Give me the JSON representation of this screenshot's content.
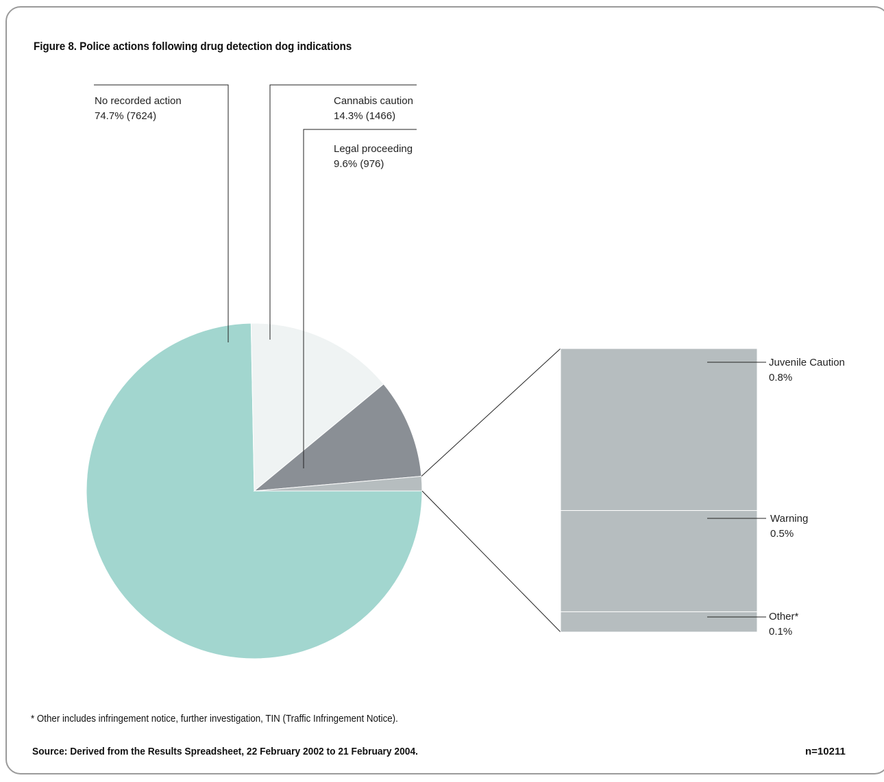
{
  "title": "Figure 8. Police actions following drug detection dog indications",
  "footnote": "* Other includes infringement notice, further investigation, TIN (Traffic Infringement Notice).",
  "source": "Source: Derived from the Results Spreadsheet, 22 February 2002 to 21 February 2004.",
  "n_label": "n=10211",
  "colors": {
    "no_recorded_action": "#a2d6cf",
    "cannabis_caution": "#eff3f3",
    "legal_proceeding": "#8a8f95",
    "small_group": "#b6bdbf"
  },
  "chart_data": [
    {
      "type": "pie",
      "slices": [
        {
          "label": "No recorded action",
          "value_text": "74.7% (7624)",
          "percent": 74.7,
          "count": 7624
        },
        {
          "label": "Cannabis caution",
          "value_text": "14.3% (1466)",
          "percent": 14.3,
          "count": 1466
        },
        {
          "label": "Legal proceeding",
          "value_text": "9.6% (976)",
          "percent": 9.6,
          "count": 976
        },
        {
          "label": "",
          "value_text": "",
          "percent": 1.4
        }
      ]
    },
    {
      "type": "bar",
      "stacked": true,
      "segments": [
        {
          "label": "Juvenile Caution",
          "value_text": "0.8%",
          "percent": 0.8
        },
        {
          "label": "Warning",
          "value_text": "0.5%",
          "percent": 0.5
        },
        {
          "label": "Other*",
          "value_text": "0.1%",
          "percent": 0.1
        }
      ]
    }
  ]
}
